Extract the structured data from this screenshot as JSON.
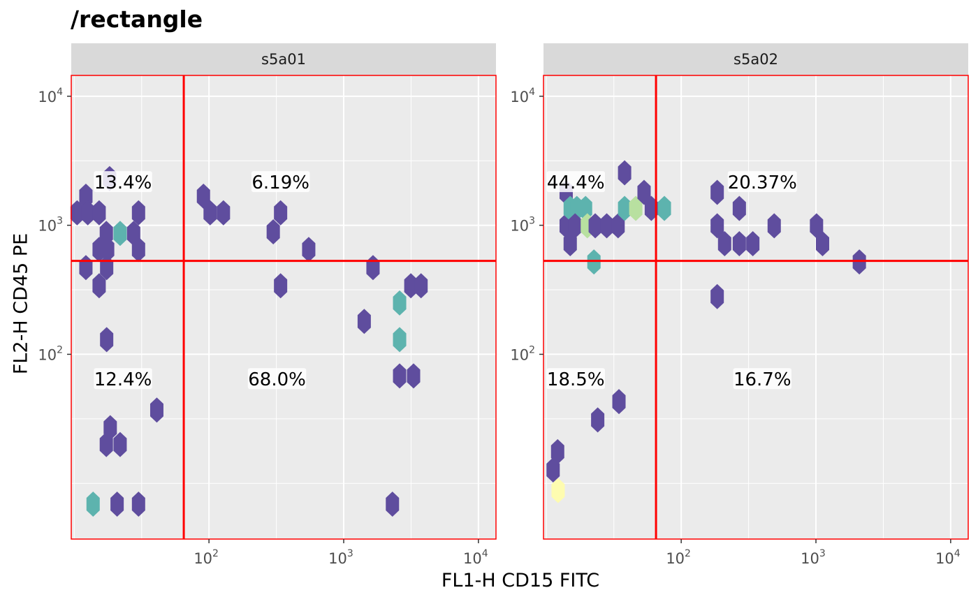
{
  "chart_data": {
    "type": "hexbin",
    "title": "/rectangle",
    "xlabel": "FL1-H CD15 FITC",
    "ylabel": "FL2-H CD45 PE",
    "xscale": "log",
    "yscale": "log",
    "xlim": [
      9.5,
      13500
    ],
    "ylim": [
      3.7,
      14500
    ],
    "x_ticks": [
      {
        "value": 100,
        "base": "10",
        "exp": "2"
      },
      {
        "value": 1000,
        "base": "10",
        "exp": "3"
      },
      {
        "value": 10000,
        "base": "10",
        "exp": "4"
      }
    ],
    "y_ticks": [
      {
        "value": 100,
        "base": "10",
        "exp": "2"
      },
      {
        "value": 1000,
        "base": "10",
        "exp": "3"
      },
      {
        "value": 10000,
        "base": "10",
        "exp": "4"
      }
    ],
    "gate": {
      "x": 65,
      "y": 530,
      "color": "#ff0000"
    },
    "colors": {
      "low": "#5f4d9e",
      "mid": "#5db3ae",
      "high": "#b8e0a0",
      "max": "#fefcb0",
      "gate_border": "#ff0000"
    },
    "panels": [
      {
        "strip": "s5a01",
        "quadrants": [
          {
            "label": "13.4%",
            "x": 23,
            "y": 2150
          },
          {
            "label": "6.19%",
            "x": 340,
            "y": 2150
          },
          {
            "label": "12.4%",
            "x": 23,
            "y": 64
          },
          {
            "label": "68.0%",
            "x": 320,
            "y": 64
          }
        ],
        "hexes": [
          {
            "x": 10.5,
            "y": 1250,
            "level": "low"
          },
          {
            "x": 12.2,
            "y": 1680,
            "level": "low"
          },
          {
            "x": 12.6,
            "y": 1250,
            "level": "low"
          },
          {
            "x": 15.3,
            "y": 1250,
            "level": "low"
          },
          {
            "x": 17.3,
            "y": 865,
            "level": "low"
          },
          {
            "x": 15.3,
            "y": 650,
            "level": "low"
          },
          {
            "x": 17.7,
            "y": 650,
            "level": "low"
          },
          {
            "x": 17.4,
            "y": 470,
            "level": "low"
          },
          {
            "x": 12.2,
            "y": 470,
            "level": "low"
          },
          {
            "x": 15.3,
            "y": 340,
            "level": "low"
          },
          {
            "x": 17.4,
            "y": 130,
            "level": "low"
          },
          {
            "x": 18.3,
            "y": 2300,
            "level": "low"
          },
          {
            "x": 21.9,
            "y": 865,
            "level": "mid"
          },
          {
            "x": 27.6,
            "y": 865,
            "level": "low"
          },
          {
            "x": 30.0,
            "y": 1250,
            "level": "low"
          },
          {
            "x": 30.0,
            "y": 650,
            "level": "low"
          },
          {
            "x": 91,
            "y": 1680,
            "level": "low"
          },
          {
            "x": 102,
            "y": 1250,
            "level": "low"
          },
          {
            "x": 128,
            "y": 1250,
            "level": "low"
          },
          {
            "x": 300,
            "y": 890,
            "level": "low"
          },
          {
            "x": 340,
            "y": 1250,
            "level": "low"
          },
          {
            "x": 550,
            "y": 650,
            "level": "low"
          },
          {
            "x": 340,
            "y": 340,
            "level": "low"
          },
          {
            "x": 1650,
            "y": 470,
            "level": "low"
          },
          {
            "x": 1420,
            "y": 180,
            "level": "low"
          },
          {
            "x": 2600,
            "y": 250,
            "level": "mid"
          },
          {
            "x": 2600,
            "y": 130,
            "level": "mid"
          },
          {
            "x": 3150,
            "y": 340,
            "level": "low"
          },
          {
            "x": 3750,
            "y": 340,
            "level": "low"
          },
          {
            "x": 2600,
            "y": 68,
            "level": "low"
          },
          {
            "x": 3300,
            "y": 68,
            "level": "low"
          },
          {
            "x": 41,
            "y": 37,
            "level": "low"
          },
          {
            "x": 18.5,
            "y": 27,
            "level": "low"
          },
          {
            "x": 17.3,
            "y": 20,
            "level": "low"
          },
          {
            "x": 21.9,
            "y": 20,
            "level": "low"
          },
          {
            "x": 13.8,
            "y": 6.9,
            "level": "mid"
          },
          {
            "x": 20.8,
            "y": 6.9,
            "level": "low"
          },
          {
            "x": 30.0,
            "y": 6.9,
            "level": "low"
          },
          {
            "x": 2300,
            "y": 6.9,
            "level": "low"
          }
        ]
      },
      {
        "strip": "s5a02",
        "quadrants": [
          {
            "label": "44.4%",
            "x": 16.5,
            "y": 2150
          },
          {
            "label": "20.37%",
            "x": 400,
            "y": 2150
          },
          {
            "label": "18.5%",
            "x": 16.5,
            "y": 64
          },
          {
            "label": "16.7%",
            "x": 400,
            "y": 64
          }
        ],
        "hexes": [
          {
            "x": 14.0,
            "y": 1800,
            "level": "low"
          },
          {
            "x": 14.0,
            "y": 990,
            "level": "low"
          },
          {
            "x": 15.0,
            "y": 1350,
            "level": "mid"
          },
          {
            "x": 16.8,
            "y": 1350,
            "level": "mid"
          },
          {
            "x": 19.5,
            "y": 1350,
            "level": "mid"
          },
          {
            "x": 16.3,
            "y": 990,
            "level": "low"
          },
          {
            "x": 20.1,
            "y": 990,
            "level": "high"
          },
          {
            "x": 23.0,
            "y": 990,
            "level": "low"
          },
          {
            "x": 28.0,
            "y": 990,
            "level": "low"
          },
          {
            "x": 34.0,
            "y": 990,
            "level": "low"
          },
          {
            "x": 15.0,
            "y": 720,
            "level": "low"
          },
          {
            "x": 22.5,
            "y": 520,
            "level": "mid"
          },
          {
            "x": 38,
            "y": 2550,
            "level": "low"
          },
          {
            "x": 38,
            "y": 1350,
            "level": "mid"
          },
          {
            "x": 46,
            "y": 1350,
            "level": "high"
          },
          {
            "x": 53,
            "y": 1800,
            "level": "low"
          },
          {
            "x": 60,
            "y": 1350,
            "level": "low"
          },
          {
            "x": 75,
            "y": 1350,
            "level": "mid"
          },
          {
            "x": 185,
            "y": 1800,
            "level": "low"
          },
          {
            "x": 185,
            "y": 990,
            "level": "low"
          },
          {
            "x": 270,
            "y": 1350,
            "level": "low"
          },
          {
            "x": 210,
            "y": 720,
            "level": "low"
          },
          {
            "x": 270,
            "y": 720,
            "level": "low"
          },
          {
            "x": 340,
            "y": 720,
            "level": "low"
          },
          {
            "x": 490,
            "y": 990,
            "level": "low"
          },
          {
            "x": 1010,
            "y": 990,
            "level": "low"
          },
          {
            "x": 1120,
            "y": 720,
            "level": "low"
          },
          {
            "x": 2100,
            "y": 520,
            "level": "low"
          },
          {
            "x": 185,
            "y": 280,
            "level": "low"
          },
          {
            "x": 34.5,
            "y": 43,
            "level": "low"
          },
          {
            "x": 24.0,
            "y": 31,
            "level": "low"
          },
          {
            "x": 12.1,
            "y": 17.6,
            "level": "low"
          },
          {
            "x": 11.2,
            "y": 12.7,
            "level": "low"
          },
          {
            "x": 12.2,
            "y": 8.8,
            "level": "max"
          }
        ]
      }
    ]
  }
}
